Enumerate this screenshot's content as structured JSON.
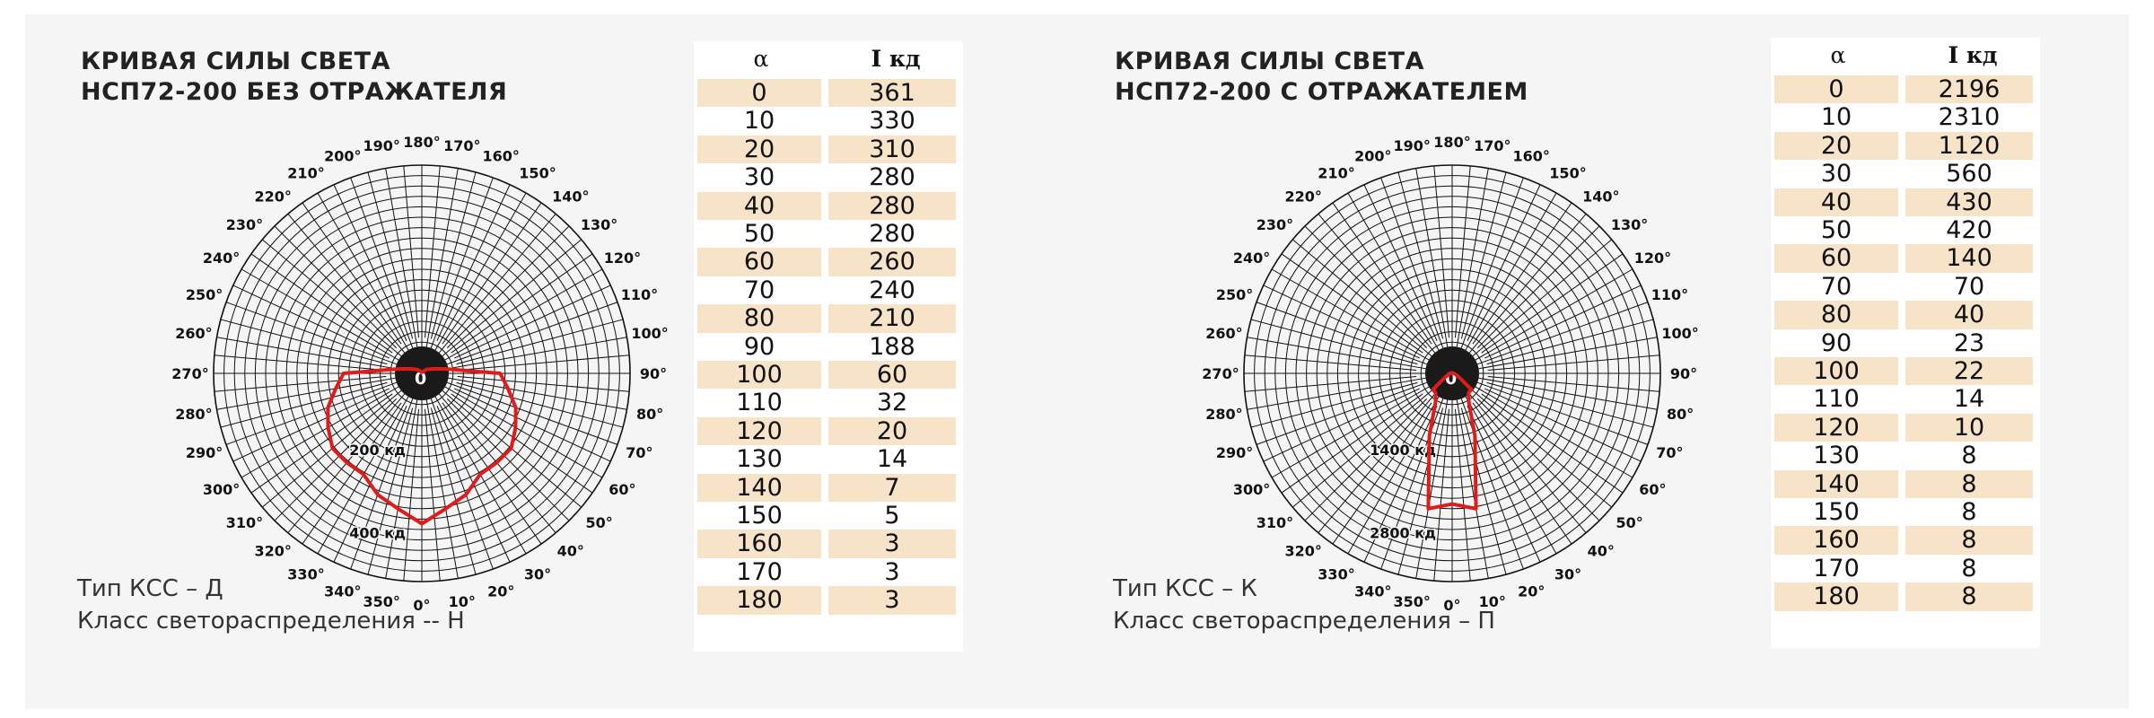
{
  "table_headers": {
    "alpha": "α",
    "intensity": "I кд"
  },
  "charts": [
    {
      "title_line1": "КРИВАЯ СИЛЫ СВЕТА",
      "title_line2": "НСП72-200 БЕЗ ОТРАЖАТЕЛЯ",
      "type_line": "Тип КСС – Д",
      "class_line": "Класс светораспределения -- Н",
      "ring_label_inner": "200 кд",
      "ring_label_outer": "400 кд",
      "center_label": "0",
      "scale_max_cd": 500,
      "ring_values_cd": [
        200,
        400
      ],
      "alpha": [
        0,
        10,
        20,
        30,
        40,
        50,
        60,
        70,
        80,
        90,
        100,
        110,
        120,
        130,
        140,
        150,
        160,
        170,
        180
      ],
      "intensity": [
        "361",
        "330",
        "310",
        "280",
        "280",
        "280",
        "260",
        "240",
        "210",
        "188",
        "60",
        "32",
        "20",
        "14",
        "7",
        "5",
        "3",
        "3",
        "3"
      ]
    },
    {
      "title_line1": "КРИВАЯ СИЛЫ СВЕТА",
      "title_line2": "НСП72-200 С ОТРАЖАТЕЛЕМ",
      "type_line": "Тип КСС – К",
      "class_line": "Класс светораспределения – П",
      "ring_label_inner": "1400 кд",
      "ring_label_outer": "2800 кд",
      "center_label": "0",
      "scale_max_cd": 3500,
      "ring_values_cd": [
        1400,
        2800
      ],
      "alpha": [
        0,
        10,
        20,
        30,
        40,
        50,
        60,
        70,
        80,
        90,
        100,
        110,
        120,
        130,
        140,
        150,
        160,
        170,
        180
      ],
      "intensity": [
        "2196",
        "2310",
        "1120",
        "560",
        "430",
        "420",
        "140",
        "70",
        "40",
        "23",
        "22",
        "14",
        "10",
        "8",
        "8",
        "8",
        "8",
        "8",
        "8"
      ]
    }
  ],
  "angle_labels": [
    "0°",
    "10°",
    "20°",
    "30°",
    "40°",
    "50°",
    "60°",
    "70°",
    "80°",
    "90°",
    "100°",
    "110°",
    "120°",
    "130°",
    "140°",
    "150°",
    "160°",
    "170°",
    "180°",
    "190°",
    "200°",
    "210°",
    "220°",
    "230°",
    "240°",
    "250°",
    "260°",
    "270°",
    "280°",
    "290°",
    "300°",
    "310°",
    "320°",
    "330°",
    "340°",
    "350°"
  ],
  "chart_data": [
    {
      "type": "polar",
      "title": "КРИВАЯ СИЛЫ СВЕТА НСП72-200 БЕЗ ОТРАЖАТЕЛЯ",
      "x": [
        0,
        10,
        20,
        30,
        40,
        50,
        60,
        70,
        80,
        90,
        100,
        110,
        120,
        130,
        140,
        150,
        160,
        170,
        180
      ],
      "series": [
        {
          "values": [
            361,
            330,
            310,
            280,
            280,
            280,
            260,
            240,
            210,
            188,
            60,
            32,
            20,
            14,
            7,
            5,
            3,
            3,
            3
          ]
        }
      ],
      "rlim": [
        0,
        500
      ],
      "curve_color": "#e01b1b"
    },
    {
      "type": "polar",
      "title": "КРИВАЯ СИЛЫ СВЕТА НСП72-200 С ОТРАЖАТЕЛЕМ",
      "x": [
        0,
        10,
        20,
        30,
        40,
        50,
        60,
        70,
        80,
        90,
        100,
        110,
        120,
        130,
        140,
        150,
        160,
        170,
        180
      ],
      "series": [
        {
          "values": [
            2196,
            2310,
            1120,
            560,
            430,
            420,
            140,
            70,
            40,
            23,
            22,
            14,
            10,
            8,
            8,
            8,
            8,
            8,
            8
          ]
        }
      ],
      "rlim": [
        0,
        3500
      ],
      "curve_color": "#e01b1b"
    }
  ]
}
